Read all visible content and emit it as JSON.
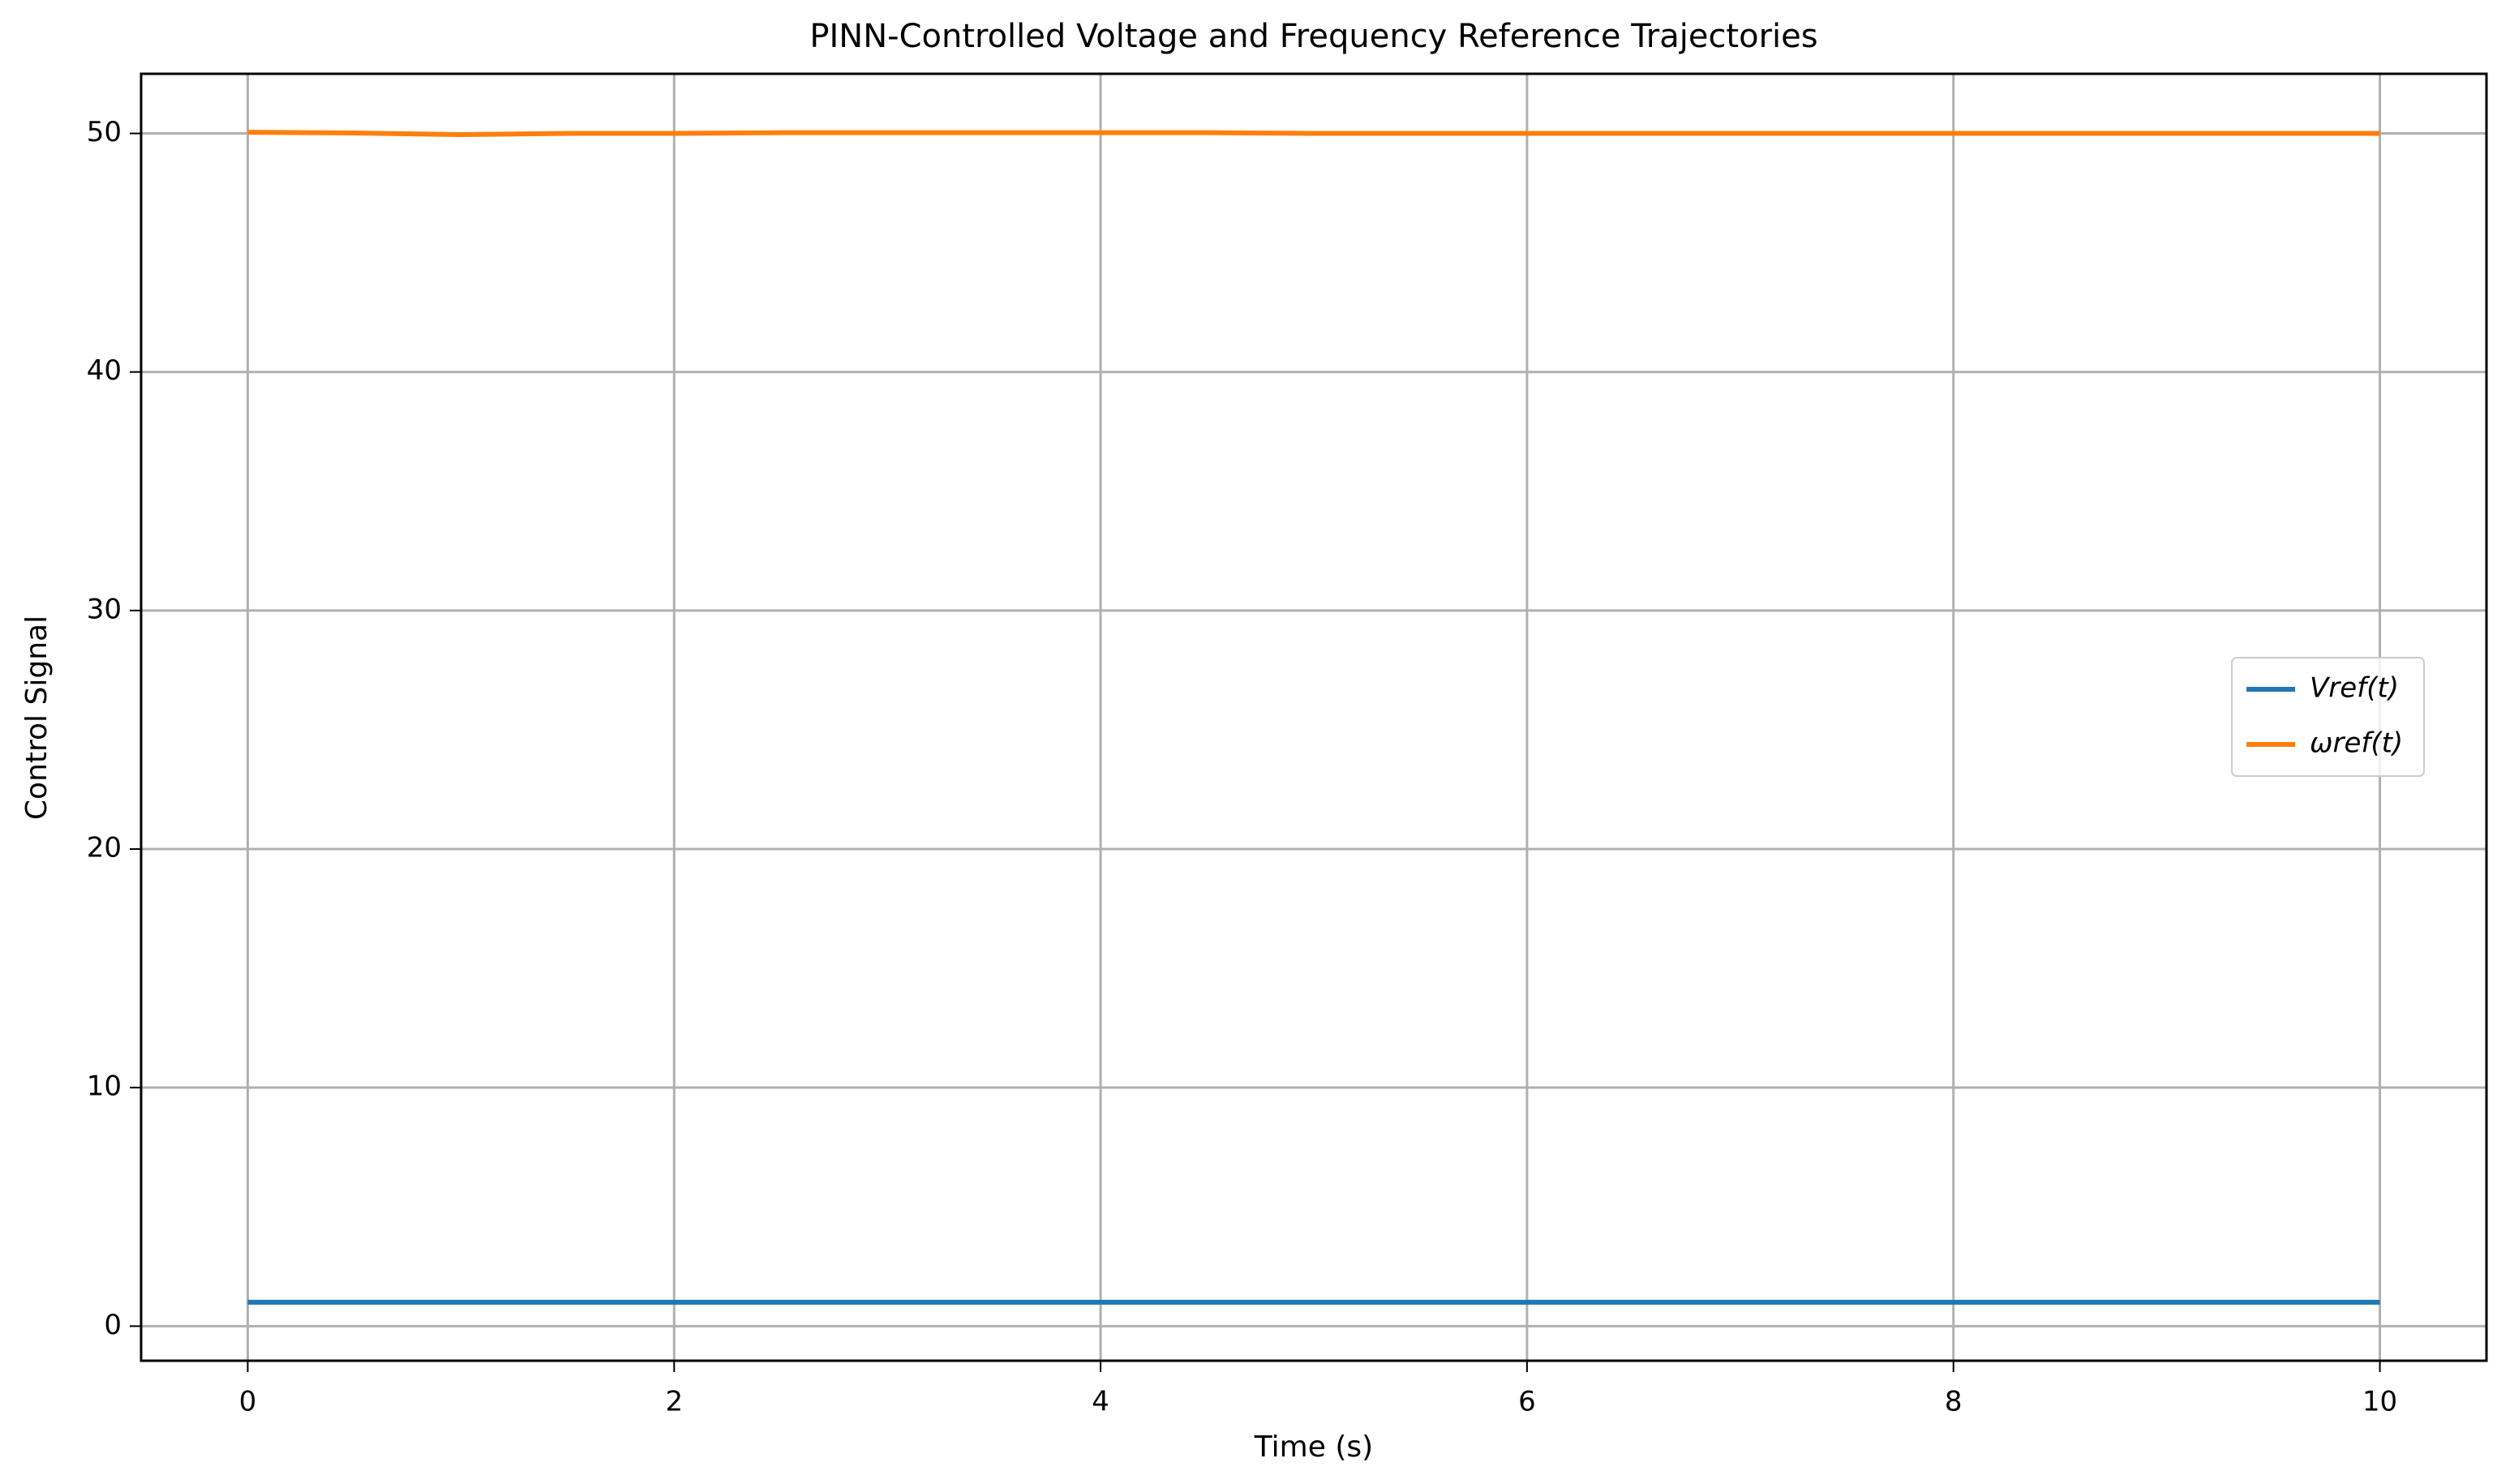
{
  "chart_data": {
    "type": "line",
    "title": "PINN-Controlled Voltage and Frequency Reference Trajectories",
    "x_label": "Time (s)",
    "y_label": "Control Signal",
    "x": [
      0,
      0.5,
      1,
      1.5,
      2,
      2.5,
      3,
      3.5,
      4,
      4.5,
      5,
      5.5,
      6,
      6.5,
      7,
      7.5,
      8,
      8.5,
      9,
      9.5,
      10
    ],
    "series": [
      {
        "name": "Vref(t)",
        "color": "#1f77b4",
        "values": [
          1,
          1,
          1,
          1,
          1,
          1,
          1,
          1,
          1,
          1,
          1,
          1,
          1,
          1,
          1,
          1,
          1,
          1,
          1,
          1,
          1
        ]
      },
      {
        "name": "ωref(t)",
        "color": "#ff7f0e",
        "values": [
          50.05,
          50.02,
          49.95,
          50.0,
          50.0,
          50.03,
          50.03,
          50.03,
          50.03,
          50.03,
          50.0,
          50.0,
          50.0,
          50.0,
          50.0,
          50.0,
          50.0,
          50.0,
          50.0,
          50.0,
          50.0
        ]
      }
    ],
    "xlim": [
      -0.5,
      10.5
    ],
    "ylim": [
      -1.45,
      52.5
    ],
    "xticks": [
      0,
      2,
      4,
      6,
      8,
      10
    ],
    "yticks": [
      0,
      10,
      20,
      30,
      40,
      50
    ],
    "grid": true,
    "legend": "right"
  }
}
